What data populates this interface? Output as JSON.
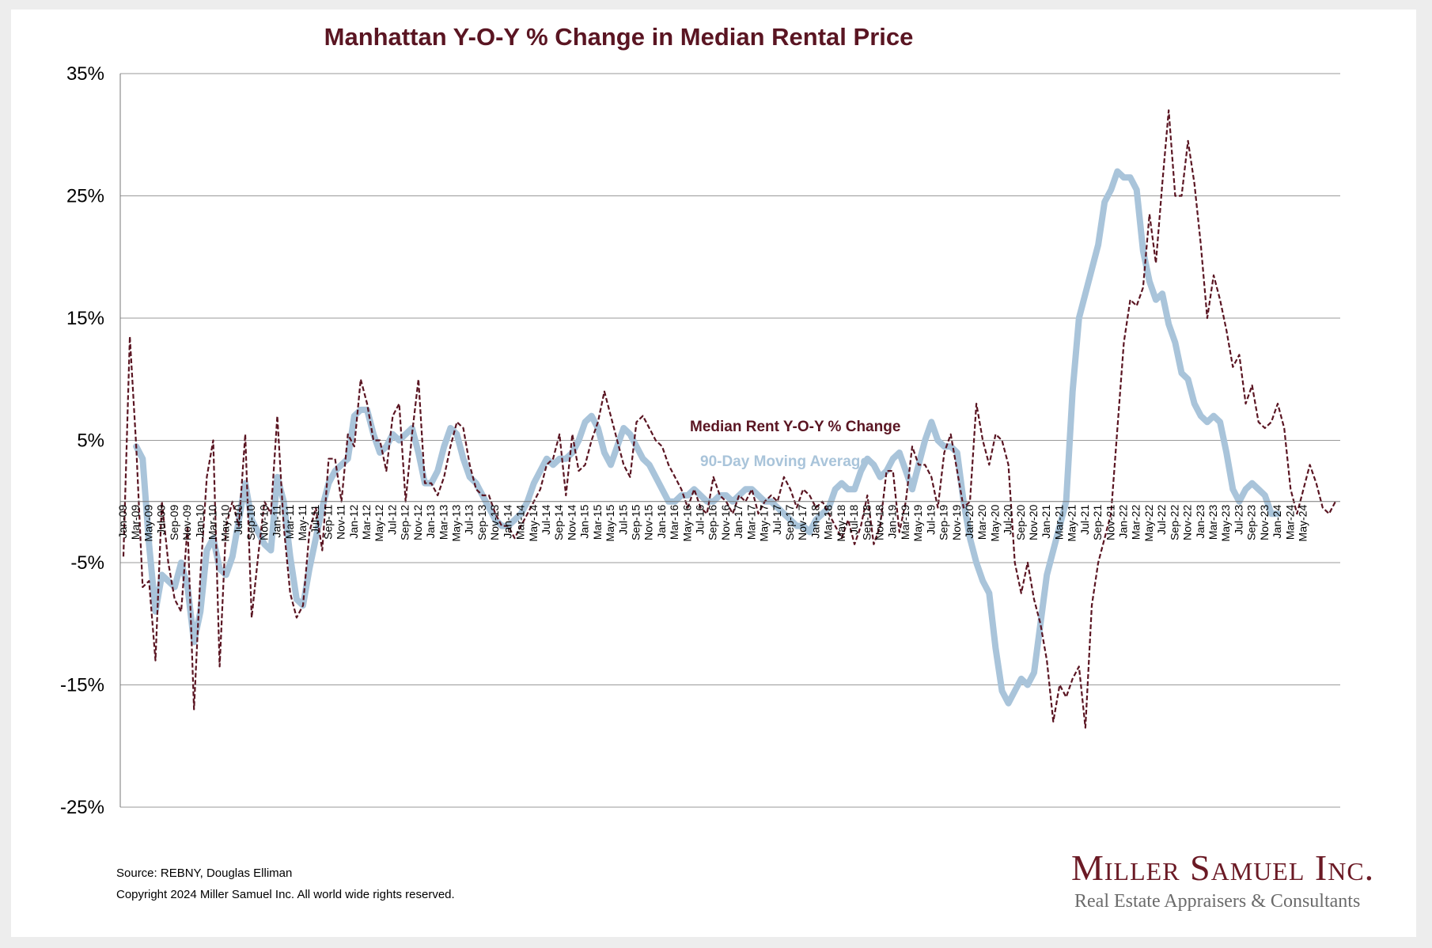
{
  "chart_data": {
    "type": "line",
    "title": "Manhattan Y-O-Y % Change in Median Rental Price",
    "ylim": [
      -25,
      35
    ],
    "yticks": [
      "35%",
      "25%",
      "15%",
      "5%",
      "-5%",
      "-15%",
      "-25%"
    ],
    "ytick_values": [
      35,
      25,
      15,
      5,
      -5,
      -15,
      -25
    ],
    "grid": true,
    "x_start": "Jan-09",
    "x_tick_labels": [
      "Jan-09",
      "Mar-09",
      "May-09",
      "Jul-09",
      "Sep-09",
      "Nov-09",
      "Jan-10",
      "Mar-10",
      "May-10",
      "Jul-10",
      "Sep-10",
      "Nov-10",
      "Jan-11",
      "Mar-11",
      "May-11",
      "Jul-11",
      "Sep-11",
      "Nov-11",
      "Jan-12",
      "Mar-12",
      "May-12",
      "Jul-12",
      "Sep-12",
      "Nov-12",
      "Jan-13",
      "Mar-13",
      "May-13",
      "Jul-13",
      "Sep-13",
      "Nov-13",
      "Jan-14",
      "Mar-14",
      "May-14",
      "Jul-14",
      "Sep-14",
      "Nov-14",
      "Jan-15",
      "Mar-15",
      "May-15",
      "Jul-15",
      "Sep-15",
      "Nov-15",
      "Jan-16",
      "Mar-16",
      "May-16",
      "Jul-16",
      "Sep-16",
      "Nov-16",
      "Jan-17",
      "Mar-17",
      "May-17",
      "Jul-17",
      "Sep-17",
      "Nov-17",
      "Jan-18",
      "Mar-18",
      "May-18",
      "Jul-18",
      "Sep-18",
      "Nov-18",
      "Jan-19",
      "Mar-19",
      "May-19",
      "Jul-19",
      "Sep-19",
      "Nov-19",
      "Jan-20",
      "Mar-20",
      "May-20",
      "Jul-20",
      "Sep-20",
      "Nov-20",
      "Jan-21",
      "Mar-21",
      "May-21",
      "Jul-21",
      "Sep-21",
      "Nov-21",
      "Jan-22",
      "Mar-22",
      "May-22",
      "Jul-22",
      "Sep-22",
      "Nov-22",
      "Jan-23",
      "Mar-23",
      "May-23",
      "Jul-23",
      "Sep-23",
      "Nov-23",
      "Jan-24",
      "Mar-24",
      "May-24"
    ],
    "series": [
      {
        "name": "Median Rent Y-O-Y % Change",
        "color": "#5a1522",
        "style": "dashed",
        "values": [
          -4.5,
          13.5,
          4.5,
          -7.0,
          -6.5,
          -13.0,
          0.0,
          -5.0,
          -8.0,
          -9.0,
          -2.0,
          -17.0,
          -6.0,
          2.0,
          5.0,
          -13.5,
          -2.0,
          0.0,
          -2.0,
          5.5,
          -9.5,
          -4.5,
          0.0,
          -1.0,
          7.0,
          -2.0,
          -7.5,
          -9.5,
          -8.5,
          -2.5,
          -0.5,
          -4.0,
          3.5,
          3.5,
          0.0,
          5.5,
          4.5,
          10.0,
          8.0,
          5.0,
          5.0,
          2.5,
          7.0,
          8.0,
          0.0,
          5.5,
          10.0,
          1.5,
          1.5,
          0.5,
          2.0,
          4.5,
          6.5,
          6.0,
          3.0,
          1.0,
          0.5,
          0.5,
          -1.0,
          -2.0,
          -2.0,
          -3.0,
          -2.0,
          -1.0,
          0.0,
          1.0,
          3.0,
          3.5,
          5.5,
          0.5,
          5.5,
          2.5,
          3.0,
          5.0,
          6.5,
          9.0,
          7.0,
          5.0,
          3.0,
          2.0,
          6.5,
          7.0,
          6.0,
          5.0,
          4.5,
          3.0,
          2.0,
          1.0,
          -0.5,
          1.0,
          -0.5,
          -1.0,
          2.0,
          0.5,
          0.0,
          -1.0,
          0.5,
          0.0,
          1.0,
          -1.0,
          0.0,
          0.5,
          0.0,
          2.0,
          1.0,
          -0.5,
          1.0,
          0.5,
          -0.5,
          0.0,
          -1.0,
          -2.0,
          -3.0,
          -1.5,
          -3.5,
          -2.0,
          0.5,
          -3.5,
          -2.0,
          2.5,
          2.5,
          -2.5,
          0.0,
          4.5,
          3.0,
          3.0,
          2.0,
          -0.5,
          4.0,
          5.5,
          2.5,
          -0.5,
          0.0,
          8.0,
          5.0,
          3.0,
          5.5,
          5.0,
          3.0,
          -5.0,
          -7.5,
          -5.0,
          -8.0,
          -10.0,
          -13.0,
          -18.0,
          -15.0,
          -16.0,
          -14.5,
          -13.5,
          -18.5,
          -8.5,
          -5.0,
          -3.0,
          -1.0,
          6.0,
          13.0,
          16.5,
          16.0,
          17.5,
          23.5,
          19.5,
          26.0,
          32.0,
          25.0,
          25.0,
          29.5,
          26.0,
          21.0,
          15.0,
          18.5,
          16.5,
          14.0,
          11.0,
          12.0,
          8.0,
          9.5,
          6.5,
          6.0,
          6.5,
          8.0,
          6.0,
          1.0,
          -1.0,
          1.0,
          3.0,
          1.5,
          -0.5,
          -1.0,
          0.0
        ]
      },
      {
        "name": "90-Day Moving Average",
        "color": "#a9c4da",
        "style": "solid",
        "values": [
          null,
          null,
          4.5,
          3.5,
          -3.5,
          -9.0,
          -6.0,
          -6.5,
          -7.0,
          -5.0,
          -7.0,
          -11.5,
          -9.0,
          -4.0,
          -3.0,
          -5.5,
          -6.0,
          -4.5,
          -1.5,
          1.5,
          -1.5,
          -2.5,
          -3.5,
          -4.0,
          2.0,
          0.0,
          -4.5,
          -8.0,
          -8.5,
          -5.5,
          -3.0,
          -0.5,
          1.5,
          2.5,
          3.0,
          3.5,
          7.0,
          7.5,
          7.5,
          5.5,
          4.0,
          4.5,
          5.5,
          5.0,
          5.5,
          6.0,
          4.0,
          1.5,
          1.5,
          2.5,
          4.5,
          6.0,
          5.5,
          3.5,
          2.0,
          1.5,
          0.5,
          -0.5,
          -1.5,
          -2.0,
          -2.0,
          -1.5,
          -1.0,
          0.0,
          1.5,
          2.5,
          3.5,
          3.0,
          3.5,
          3.5,
          4.0,
          5.0,
          6.5,
          7.0,
          6.0,
          4.0,
          3.0,
          4.5,
          6.0,
          5.5,
          4.5,
          3.5,
          3.0,
          2.0,
          1.0,
          0.0,
          0.0,
          0.5,
          0.5,
          1.0,
          0.5,
          0.0,
          0.0,
          0.5,
          0.5,
          0.0,
          0.5,
          1.0,
          1.0,
          0.5,
          0.0,
          0.0,
          -0.5,
          -1.0,
          -1.5,
          -2.0,
          -2.0,
          -2.5,
          -1.5,
          -1.0,
          -0.5,
          1.0,
          1.5,
          1.0,
          1.0,
          2.5,
          3.5,
          3.0,
          2.0,
          2.5,
          3.5,
          4.0,
          2.5,
          1.0,
          3.0,
          5.0,
          6.5,
          5.0,
          4.5,
          4.5,
          4.0,
          0.0,
          -3.0,
          -5.0,
          -6.5,
          -7.5,
          -12.0,
          -15.5,
          -16.5,
          -15.5,
          -14.5,
          -15.0,
          -14.0,
          -10.0,
          -6.0,
          -4.0,
          -2.0,
          0.0,
          9.0,
          15.0,
          17.0,
          19.0,
          21.0,
          24.5,
          25.5,
          27.0,
          26.5,
          26.5,
          25.5,
          20.5,
          18.0,
          16.5,
          17.0,
          14.5,
          13.0,
          10.5,
          10.0,
          8.0,
          7.0,
          6.5,
          7.0,
          6.5,
          4.0,
          1.0,
          0.0,
          1.0,
          1.5,
          1.0,
          0.5,
          -1.0,
          -1.0
        ]
      }
    ],
    "legend": {
      "placement": "center",
      "items": [
        {
          "label": "Median Rent Y-O-Y % Change",
          "color": "#5a1522"
        },
        {
          "label": "90-Day Moving Average",
          "color": "#a9c4da"
        }
      ]
    }
  },
  "footer": {
    "source": "Source: REBNY, Douglas Elliman",
    "copyright": "Copyright 2024 Miller Samuel Inc.  All world wide rights reserved."
  },
  "logo": {
    "name": "Miller Samuel Inc.",
    "tagline": "Real Estate Appraisers & Consultants"
  }
}
